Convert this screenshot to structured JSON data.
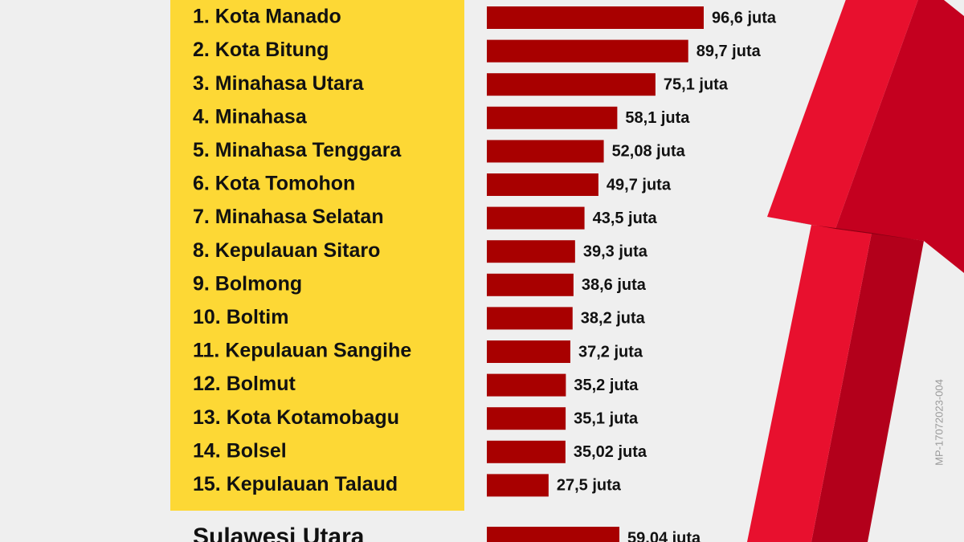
{
  "chart_data": {
    "type": "bar",
    "orientation": "horizontal",
    "categories": [
      "1. Kota Manado",
      "2. Kota Bitung",
      "3. Minahasa Utara",
      "4. Minahasa",
      "5. Minahasa Tenggara",
      "6. Kota Tomohon",
      "7. Minahasa Selatan",
      "8. Kepulauan Sitaro",
      "9. Bolmong",
      "10. Boltim",
      "11. Kepulauan Sangihe",
      "12. Bolmut",
      "13. Kota Kotamobagu",
      "14. Bolsel",
      "15. Kepulauan Talaud"
    ],
    "values": [
      96.6,
      89.7,
      75.1,
      58.1,
      52.08,
      49.7,
      43.5,
      39.3,
      38.6,
      38.2,
      37.2,
      35.2,
      35.1,
      35.02,
      27.5
    ],
    "value_labels": [
      "96,6 juta",
      "89,7 juta",
      "75,1 juta",
      "58,1 juta",
      "52,08 juta",
      "49,7 juta",
      "43,5 juta",
      "39,3 juta",
      "38,6 juta",
      "38,2 juta",
      "37,2 juta",
      "35,2 juta",
      "35,1 juta",
      "35,02 juta",
      "27,5 juta"
    ],
    "color": "#a80000",
    "summary": {
      "category": "Sulawesi Utara",
      "value": 59.04,
      "value_label": "59,04 juta"
    },
    "watermark": "MP-17072023-004"
  }
}
